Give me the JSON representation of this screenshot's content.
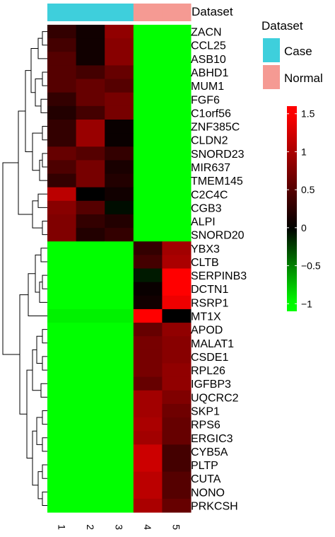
{
  "chart_data": {
    "type": "heatmap",
    "annotation_label": "Dataset",
    "legend": {
      "title": "Dataset",
      "entries": [
        {
          "label": "Case",
          "color": "#3ecfdc"
        },
        {
          "label": "Normal",
          "color": "#f59a93"
        }
      ]
    },
    "colorbar": {
      "ticks": [
        "1.5",
        "1",
        "0.5",
        "0",
        "−0.5",
        "−1"
      ],
      "tick_values": [
        1.5,
        1,
        0.5,
        0,
        -0.5,
        -1
      ],
      "range": [
        -1.1,
        1.6
      ],
      "low_color": "#00ff00",
      "mid_color": "#000000",
      "high_color": "#ff0000"
    },
    "columns": [
      "1",
      "2",
      "3",
      "4",
      "5"
    ],
    "column_groups": [
      "Case",
      "Case",
      "Case",
      "Normal",
      "Normal"
    ],
    "rows": [
      "ZACN",
      "CCL25",
      "ASB10",
      "ABHD1",
      "MUM1",
      "FGF6",
      "C1orf56",
      "ZNF385C",
      "CLDN2",
      "SNORD23",
      "MIR637",
      "TMEM145",
      "C2C4C",
      "CGB3",
      "ALPI",
      "SNORD20",
      "YBX3",
      "CLTB",
      "SERPINB3",
      "DCTN1",
      "RSRP1",
      "MT1X",
      "APOD",
      "MALAT1",
      "CSDE1",
      "RPL26",
      "IGFBP3",
      "UQCRC2",
      "SKP1",
      "RPS6",
      "ERGIC3",
      "CYB5A",
      "PLTP",
      "CUTA",
      "NONO",
      "PRKCSH"
    ],
    "values": [
      [
        0.3,
        0.1,
        0.85,
        -1.0,
        -1.0
      ],
      [
        0.4,
        0.1,
        0.8,
        -1.0,
        -1.0
      ],
      [
        0.5,
        0.1,
        0.8,
        -1.0,
        -1.0
      ],
      [
        0.5,
        0.4,
        0.6,
        -1.0,
        -1.0
      ],
      [
        0.5,
        0.6,
        0.5,
        -1.0,
        -1.0
      ],
      [
        0.3,
        0.6,
        0.7,
        -1.0,
        -1.0
      ],
      [
        0.2,
        0.4,
        0.7,
        -1.0,
        -1.0
      ],
      [
        0.3,
        0.9,
        0.05,
        -1.0,
        -1.0
      ],
      [
        0.3,
        0.9,
        0.05,
        -1.0,
        -1.0
      ],
      [
        0.6,
        0.5,
        0.3,
        -1.0,
        -1.0
      ],
      [
        0.45,
        0.7,
        0.15,
        -1.0,
        -1.0
      ],
      [
        0.3,
        0.7,
        0.2,
        -1.0,
        -1.0
      ],
      [
        1.1,
        0.0,
        0.1,
        -1.0,
        -1.0
      ],
      [
        0.8,
        0.5,
        -0.05,
        -1.0,
        -1.0
      ],
      [
        0.75,
        0.3,
        0.2,
        -1.0,
        -1.0
      ],
      [
        0.75,
        0.2,
        0.3,
        -1.0,
        -1.0
      ],
      [
        -1.0,
        -1.0,
        -1.0,
        0.3,
        0.95
      ],
      [
        -1.0,
        -1.0,
        -1.0,
        0.4,
        1.0
      ],
      [
        -1.0,
        -1.0,
        -1.0,
        -0.1,
        1.5
      ],
      [
        -1.0,
        -1.0,
        -1.0,
        0.05,
        1.5
      ],
      [
        -1.0,
        -1.0,
        -1.0,
        0.1,
        1.4
      ],
      [
        -0.95,
        -0.95,
        -0.95,
        1.55,
        0.0
      ],
      [
        -1.0,
        -1.0,
        -1.0,
        0.6,
        0.85
      ],
      [
        -1.0,
        -1.0,
        -1.0,
        0.7,
        0.8
      ],
      [
        -1.0,
        -1.0,
        -1.0,
        0.7,
        0.8
      ],
      [
        -1.0,
        -1.0,
        -1.0,
        0.7,
        0.85
      ],
      [
        -1.0,
        -1.0,
        -1.0,
        0.6,
        0.85
      ],
      [
        -1.0,
        -1.0,
        -1.0,
        0.95,
        0.75
      ],
      [
        -1.0,
        -1.0,
        -1.0,
        0.95,
        0.65
      ],
      [
        -1.0,
        -1.0,
        -1.0,
        1.0,
        0.6
      ],
      [
        -1.0,
        -1.0,
        -1.0,
        0.95,
        0.6
      ],
      [
        -1.0,
        -1.0,
        -1.0,
        1.2,
        0.4
      ],
      [
        -1.0,
        -1.0,
        -1.0,
        1.2,
        0.4
      ],
      [
        -1.0,
        -1.0,
        -1.0,
        1.1,
        0.5
      ],
      [
        -1.0,
        -1.0,
        -1.0,
        1.1,
        0.5
      ],
      [
        -1.0,
        -1.0,
        -1.0,
        1.0,
        0.6
      ]
    ]
  }
}
